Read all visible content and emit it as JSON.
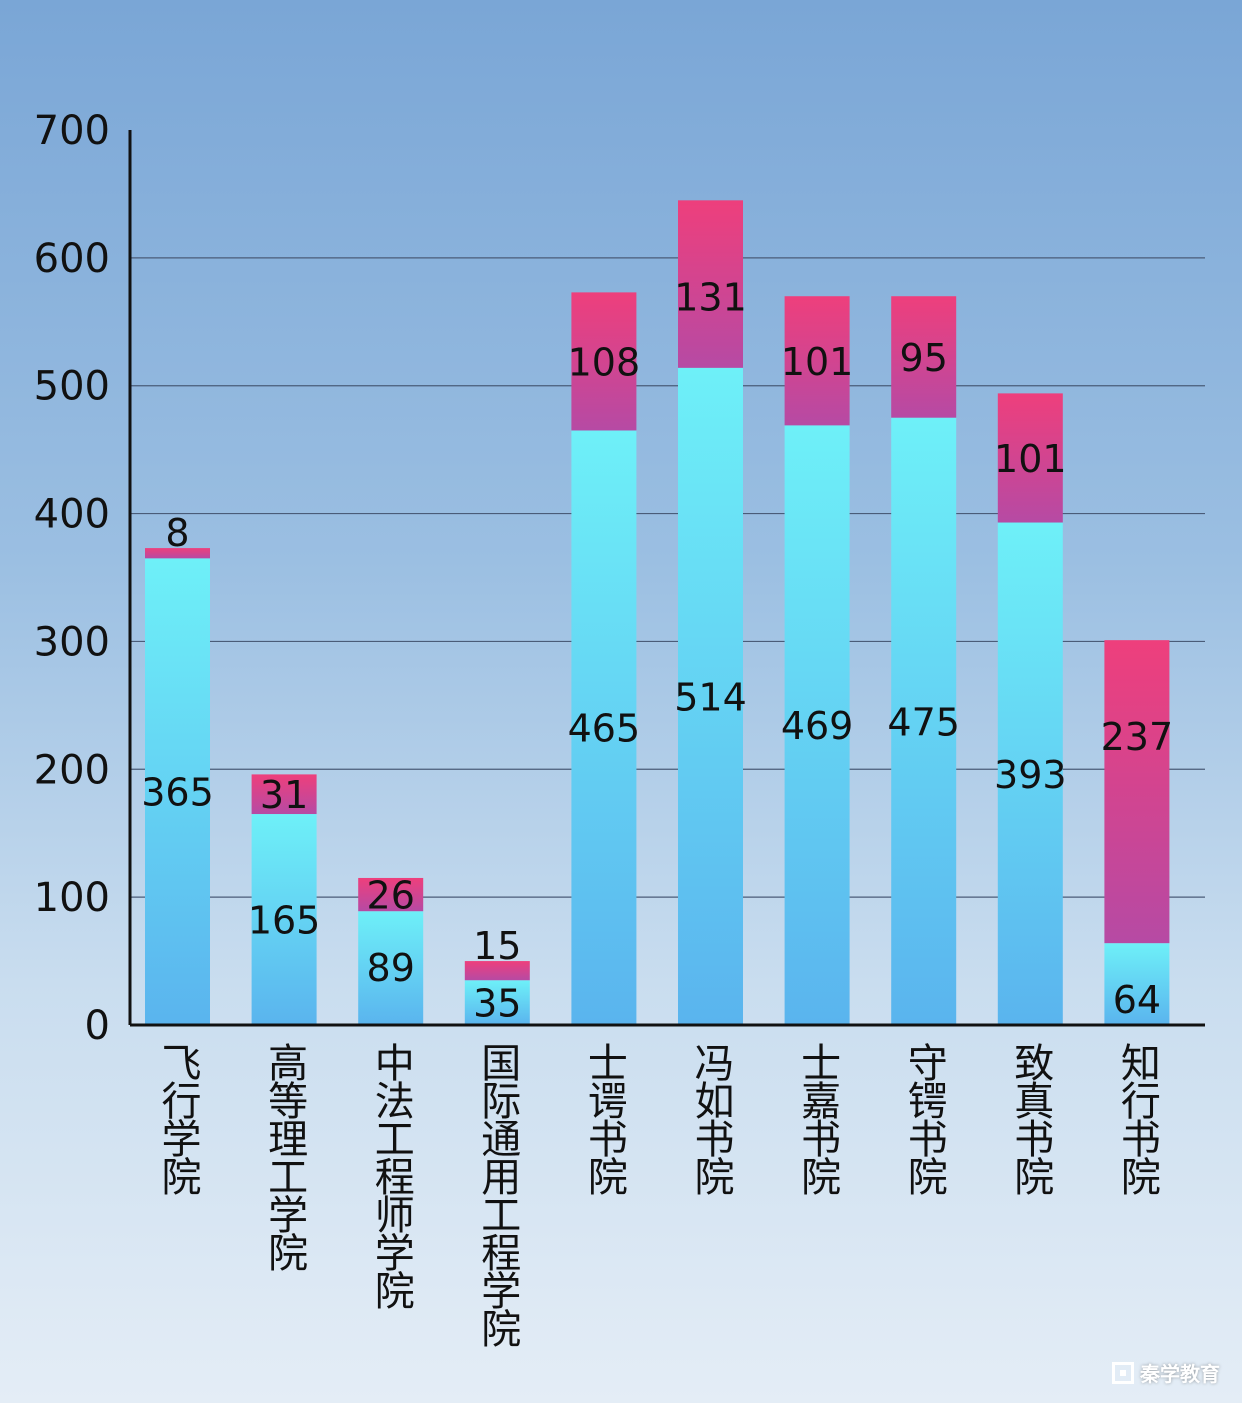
{
  "chart_data": {
    "type": "bar",
    "stacked": true,
    "categories": [
      "飞行学院",
      "高等理工学院",
      "中法工程师学院",
      "国际通用工程学院",
      "士谔书院",
      "冯如书院",
      "士嘉书院",
      "守锷书院",
      "致真书院",
      "知行书院"
    ],
    "series": [
      {
        "values": [
          365,
          165,
          89,
          35,
          465,
          514,
          469,
          475,
          393,
          64
        ],
        "color": "#66e6f6"
      },
      {
        "values": [
          8,
          31,
          26,
          15,
          108,
          131,
          101,
          95,
          101,
          237
        ],
        "color": "#ec3f7e"
      }
    ],
    "yticks": [
      0,
      100,
      200,
      300,
      400,
      500,
      600,
      700
    ],
    "ylim": [
      0,
      700
    ],
    "grid": true,
    "legend": "none"
  },
  "watermark": {
    "text": "秦学教育",
    "icon": "logo-icon"
  }
}
